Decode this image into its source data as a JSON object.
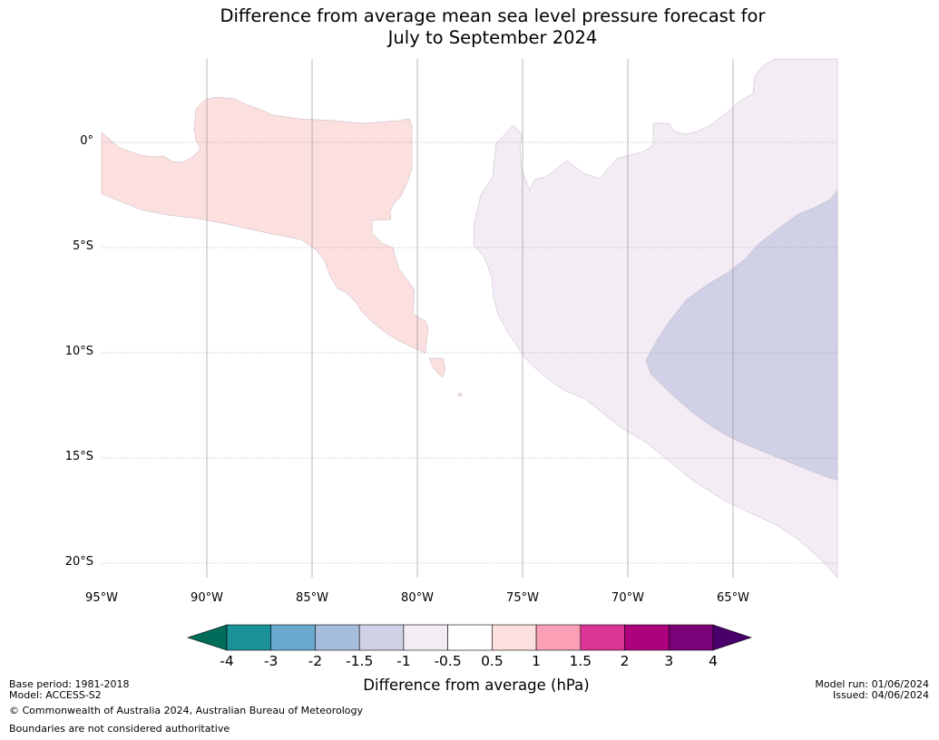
{
  "title": {
    "line1": "Difference from average mean sea level pressure forecast for",
    "line2": "July to September 2024"
  },
  "map": {
    "latitude_labels": [
      "0°",
      "5°S",
      "10°S",
      "15°S",
      "20°S"
    ],
    "longitude_labels": [
      "95°W",
      "90°W",
      "85°W",
      "80°W",
      "75°W",
      "70°W",
      "65°W"
    ],
    "regions": [
      {
        "name": "slightly above average (0.5 to 1 hPa)",
        "color": "#fcdfdf"
      },
      {
        "name": "slightly below average (-1 to -0.5 hPa)",
        "color": "#f3ecf5"
      },
      {
        "name": "below average (-1.5 to -1 hPa)",
        "color": "#d0d1e6"
      }
    ]
  },
  "colorbar": {
    "label": "Difference from average (hPa)",
    "tick_labels": [
      "-4",
      "-3",
      "-2",
      "-1.5",
      "-1",
      "-0.5",
      "0.5",
      "1",
      "1.5",
      "2",
      "3",
      "4"
    ],
    "low_extend_color": "#016c59",
    "high_extend_color": "#49006a",
    "colors": [
      "#1a9297",
      "#67a9cf",
      "#a6bddb",
      "#d0d1e6",
      "#f3ecf5",
      "#ffffff",
      "#fcdfdf",
      "#fa9fb5",
      "#dd3497",
      "#ae017e",
      "#7a0177"
    ]
  },
  "footer": {
    "base_period": "Base period: 1981-2018",
    "model": "Model: ACCESS-S2",
    "copyright": "© Commonwealth of Australia 2024, Australian Bureau of Meteorology",
    "boundaries": "Boundaries are not considered authoritative",
    "model_run": "Model run: 01/06/2024",
    "issued": "Issued: 04/06/2024"
  }
}
